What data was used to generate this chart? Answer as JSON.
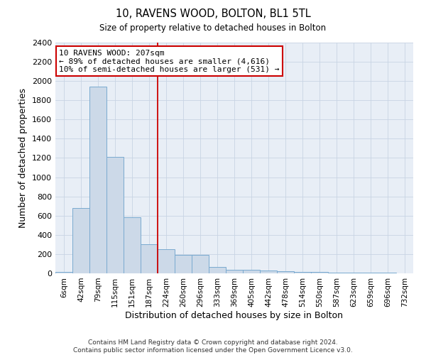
{
  "title": "10, RAVENS WOOD, BOLTON, BL1 5TL",
  "subtitle": "Size of property relative to detached houses in Bolton",
  "xlabel": "Distribution of detached houses by size in Bolton",
  "ylabel": "Number of detached properties",
  "footer_line1": "Contains HM Land Registry data © Crown copyright and database right 2024.",
  "footer_line2": "Contains public sector information licensed under the Open Government Licence v3.0.",
  "annotation_line1": "10 RAVENS WOOD: 207sqm",
  "annotation_line2": "← 89% of detached houses are smaller (4,616)",
  "annotation_line3": "10% of semi-detached houses are larger (531) →",
  "bar_color": "#ccd9e8",
  "bar_edge_color": "#7aaad0",
  "vline_color": "#cc0000",
  "annotation_box_edgecolor": "#cc0000",
  "categories": [
    "6sqm",
    "42sqm",
    "79sqm",
    "115sqm",
    "151sqm",
    "187sqm",
    "224sqm",
    "260sqm",
    "296sqm",
    "333sqm",
    "369sqm",
    "405sqm",
    "442sqm",
    "478sqm",
    "514sqm",
    "550sqm",
    "587sqm",
    "623sqm",
    "659sqm",
    "696sqm",
    "732sqm"
  ],
  "values": [
    12,
    680,
    1940,
    1210,
    580,
    305,
    250,
    195,
    190,
    68,
    40,
    35,
    28,
    25,
    18,
    16,
    10,
    8,
    5,
    4,
    3
  ],
  "ylim": [
    0,
    2400
  ],
  "yticks": [
    0,
    200,
    400,
    600,
    800,
    1000,
    1200,
    1400,
    1600,
    1800,
    2000,
    2200,
    2400
  ],
  "vline_x_index": 5.5,
  "grid_color": "#c8d4e4",
  "background_color": "#e8eef6"
}
